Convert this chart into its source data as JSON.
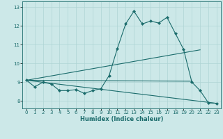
{
  "xlabel": "Humidex (Indice chaleur)",
  "bg_color": "#cce8e8",
  "line_color": "#1a6b6b",
  "grid_color": "#afd4d4",
  "xlim": [
    -0.5,
    23.5
  ],
  "ylim": [
    7.6,
    13.3
  ],
  "xticks": [
    0,
    1,
    2,
    3,
    4,
    5,
    6,
    7,
    8,
    9,
    10,
    11,
    12,
    13,
    14,
    15,
    16,
    17,
    18,
    19,
    20,
    21,
    22,
    23
  ],
  "yticks": [
    8,
    9,
    10,
    11,
    12,
    13
  ],
  "line1_x": [
    0,
    1,
    2,
    3,
    4,
    5,
    6,
    7,
    8,
    9,
    10,
    11,
    12,
    13,
    14,
    15,
    16,
    17,
    18,
    19,
    20,
    21,
    22,
    23
  ],
  "line1_y": [
    9.1,
    8.75,
    9.0,
    8.9,
    8.55,
    8.55,
    8.6,
    8.4,
    8.55,
    8.65,
    9.35,
    10.8,
    12.1,
    12.78,
    12.1,
    12.25,
    12.15,
    12.45,
    11.6,
    10.75,
    9.0,
    8.55,
    7.9,
    7.87
  ],
  "line2_x": [
    0,
    21
  ],
  "line2_y": [
    9.1,
    10.72
  ],
  "line3_x": [
    0,
    23
  ],
  "line3_y": [
    9.1,
    7.87
  ],
  "line4_x": [
    0,
    20
  ],
  "line4_y": [
    9.1,
    9.05
  ]
}
